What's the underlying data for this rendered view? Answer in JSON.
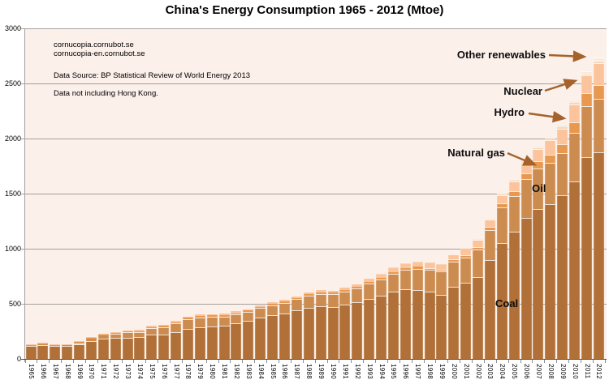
{
  "title": "China's Energy Consumption 1965 - 2012 (Mtoe)",
  "annotations": {
    "site_line1": "cornucopia.cornubot.se",
    "site_line2": "cornucopia-en.cornubot.se",
    "source": "Data Source: BP Statistical Review of World Energy 2013",
    "note": "Data not including Hong Kong."
  },
  "series_labels": {
    "other_renewables": "Other renewables",
    "nuclear": "Nuclear",
    "hydro": "Hydro",
    "natural_gas": "Natural gas",
    "oil": "Oil",
    "coal": "Coal"
  },
  "colors": {
    "plot_background": "#fcf0ea",
    "gridline": "#a3a19f",
    "x_axis": "#4d4d4d",
    "arrow": "#a5622b",
    "coal": "#b07038",
    "oil": "#cc8c50",
    "natural_gas": "#e8994f",
    "hydro": "#fbc49c",
    "nuclear": "#f5d8bc",
    "other_renewables": "#f7ebdf"
  },
  "chart_data": {
    "type": "bar",
    "stacked": true,
    "title": "China's Energy Consumption 1965 - 2012 (Mtoe)",
    "unit": "Mtoe",
    "grid": true,
    "legend_position": "inline-arrow-callouts",
    "ylim": [
      0,
      3000
    ],
    "yticks": [
      0,
      500,
      1000,
      1500,
      2000,
      2500,
      3000
    ],
    "x": [
      1965,
      1966,
      1967,
      1968,
      1969,
      1970,
      1971,
      1972,
      1973,
      1974,
      1975,
      1976,
      1977,
      1978,
      1979,
      1980,
      1981,
      1982,
      1983,
      1984,
      1985,
      1986,
      1987,
      1988,
      1989,
      1990,
      1991,
      1992,
      1993,
      1994,
      1995,
      1996,
      1997,
      1998,
      1999,
      2000,
      2001,
      2002,
      2003,
      2004,
      2005,
      2006,
      2007,
      2008,
      2009,
      2010,
      2011,
      2012
    ],
    "series": [
      {
        "name": "Coal",
        "color_key": "coal",
        "values": [
          114,
          126,
          114,
          115,
          136,
          161,
          183,
          190,
          194,
          195,
          217,
          220,
          246,
          275,
          290,
          296,
          303,
          323,
          345,
          374,
          398,
          415,
          440,
          464,
          478,
          473,
          492,
          514,
          542,
          570,
          608,
          634,
          622,
          608,
          581,
          656,
          690,
          744,
          897,
          1054,
          1152,
          1281,
          1360,
          1404,
          1483,
          1611,
          1834,
          1873
        ]
      },
      {
        "name": "Oil",
        "color_key": "oil",
        "values": [
          10.9,
          13.9,
          11.9,
          14.2,
          18.1,
          28.2,
          34.4,
          39.3,
          47.6,
          51.3,
          62.7,
          69.0,
          75.2,
          85.3,
          88.2,
          85.4,
          80.3,
          79.9,
          82.9,
          85.8,
          89.3,
          94.3,
          100.9,
          108.3,
          112.3,
          112.8,
          118.3,
          125.9,
          140.4,
          148.5,
          160.7,
          174.4,
          196.3,
          200.4,
          209.6,
          223.6,
          227.9,
          247.5,
          271.7,
          318.9,
          327.8,
          349.8,
          368.0,
          375.7,
          388.2,
          437.7,
          461.8,
          483.7
        ]
      },
      {
        "name": "Natural gas",
        "color_key": "natural_gas",
        "values": [
          1.0,
          1.1,
          1.2,
          1.3,
          1.7,
          2.6,
          3.4,
          4.3,
          5.4,
          6.2,
          8.0,
          9.3,
          10.9,
          12.4,
          13.1,
          12.8,
          11.5,
          10.7,
          11.0,
          11.2,
          11.6,
          12.3,
          12.5,
          12.8,
          13.6,
          13.8,
          14.2,
          14.2,
          15.1,
          15.8,
          16.2,
          17.0,
          17.5,
          18.4,
          19.5,
          22.1,
          24.9,
          26.4,
          30.5,
          35.7,
          42.1,
          50.0,
          63.3,
          72.6,
          80.0,
          98.1,
          117.6,
          129.5
        ]
      },
      {
        "name": "Hydro",
        "color_key": "hydro",
        "values": [
          4.0,
          5.0,
          4.0,
          4.0,
          4.2,
          5.2,
          6.0,
          6.6,
          8.9,
          9.4,
          10.6,
          10.4,
          10.9,
          10.1,
          11.3,
          13.1,
          14.9,
          16.8,
          19.5,
          19.6,
          20.9,
          21.3,
          22.7,
          24.7,
          26.8,
          28.7,
          28.2,
          29.8,
          34.5,
          37.9,
          42.8,
          42.3,
          44.1,
          46.9,
          47.6,
          50.3,
          62.9,
          65.3,
          64.1,
          80.1,
          89.8,
          98.6,
          109.8,
          132.4,
          139.3,
          163.1,
          158.4,
          194.8
        ]
      },
      {
        "name": "Nuclear",
        "color_key": "nuclear",
        "values": [
          0,
          0,
          0,
          0,
          0,
          0,
          0,
          0,
          0,
          0,
          0,
          0,
          0,
          0,
          0,
          0,
          0,
          0,
          0,
          0,
          0,
          0,
          0,
          0,
          0,
          0,
          0,
          0,
          0.4,
          3.1,
          2.9,
          3.2,
          3.3,
          3.2,
          3.4,
          3.8,
          3.9,
          5.7,
          9.8,
          11.4,
          12.0,
          12.4,
          14.1,
          15.5,
          15.9,
          16.7,
          19.5,
          22.0
        ]
      },
      {
        "name": "Other renewables",
        "color_key": "other_renewables",
        "values": [
          0,
          0,
          0,
          0,
          0,
          0,
          0,
          0,
          0,
          0,
          0,
          0,
          0,
          0,
          0,
          0,
          0,
          0,
          0,
          0,
          0,
          0,
          0,
          0,
          0,
          0,
          0,
          0,
          0,
          0,
          0,
          0,
          0,
          0,
          0,
          0.6,
          0.7,
          0.8,
          0.9,
          1.1,
          1.5,
          2.3,
          3.3,
          5.5,
          8.7,
          12.9,
          21.6,
          31.9
        ]
      }
    ]
  }
}
